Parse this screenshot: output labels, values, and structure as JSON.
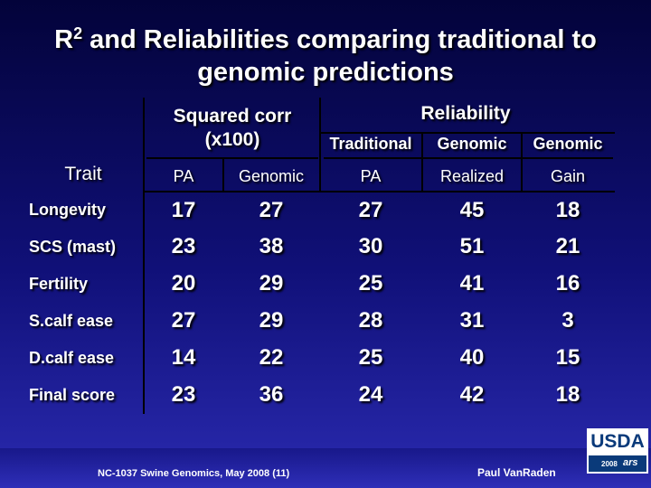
{
  "slide": {
    "title_prefix": "R",
    "title_superscript": "2",
    "title_line1_rest": " and Reliabilities comparing traditional to",
    "title_line2": "genomic predictions"
  },
  "table": {
    "group_headers": {
      "squared_corr_line1": "Squared corr",
      "squared_corr_line2": "(x100)",
      "reliability": "Reliability"
    },
    "sub_headers": {
      "traditional": "Traditional",
      "genomic_realized": "Genomic",
      "genomic_gain": "Genomic"
    },
    "columns": {
      "trait": "Trait",
      "pa": "PA",
      "genomic": "Genomic",
      "rel_pa": "PA",
      "realized": "Realized",
      "gain": "Gain"
    },
    "rows": [
      {
        "trait": "Longevity",
        "values": [
          "17",
          "27",
          "27",
          "45",
          "18"
        ]
      },
      {
        "trait": "SCS (mast)",
        "values": [
          "23",
          "38",
          "30",
          "51",
          "21"
        ]
      },
      {
        "trait": "Fertility",
        "values": [
          "20",
          "29",
          "25",
          "41",
          "16"
        ]
      },
      {
        "trait": "S.calf ease",
        "values": [
          "27",
          "29",
          "28",
          "31",
          "3"
        ]
      },
      {
        "trait": "D.calf ease",
        "values": [
          "14",
          "22",
          "25",
          "40",
          "15"
        ]
      },
      {
        "trait": "Final score",
        "values": [
          "23",
          "36",
          "24",
          "42",
          "18"
        ]
      }
    ]
  },
  "footer": {
    "left": "NC-1037 Swine Genomics, May 2008 (11)",
    "right": "Paul VanRaden"
  },
  "logo": {
    "usda": "USDA",
    "year": "2008",
    "ars": "ars"
  }
}
